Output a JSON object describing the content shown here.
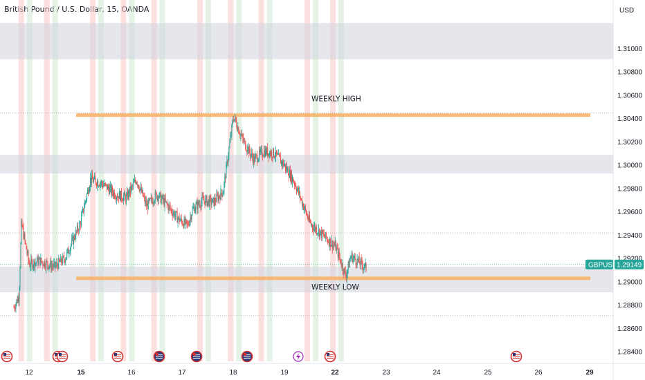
{
  "title": "British Pound / U.S. Dollar, 15, OANDA",
  "currency": "USD",
  "symbol_tag": "GBPUSD",
  "current_price_label": "1.29149",
  "colors": {
    "up": "#26a69a",
    "down": "#ef5350",
    "zone": "#d1d4dc",
    "line": "#f7b267",
    "session_red": "#f7c7c5",
    "session_green": "#cfead3",
    "tag_bg": "#26a69a"
  },
  "annotations": {
    "weekly_high": "WEEKLY HIGH",
    "weekly_low": "WEEKLY LOW"
  },
  "event_icons": [
    "us-flag-icon",
    "us-flag-icon",
    "us-flag-icon",
    "us-flag-icon",
    "uk-flag-icon",
    "uk-flag-icon",
    "uk-flag-icon",
    "lightning-icon",
    "us-flag-icon",
    "us-flag-icon"
  ],
  "chart_data": {
    "type": "candlestick",
    "title": "British Pound / U.S. Dollar, 15, OANDA",
    "ylim": [
      1.283,
      1.314
    ],
    "y_ticks": [
      "1.31000",
      "1.30800",
      "1.30600",
      "1.30400",
      "1.30200",
      "1.30000",
      "1.29800",
      "1.29600",
      "1.29400",
      "1.29200",
      "1.29000",
      "1.28800",
      "1.28600",
      "1.28400"
    ],
    "x_ticks": [
      {
        "label": "12",
        "bold": false
      },
      {
        "label": "15",
        "bold": true
      },
      {
        "label": "16",
        "bold": false
      },
      {
        "label": "17",
        "bold": false
      },
      {
        "label": "18",
        "bold": false
      },
      {
        "label": "19",
        "bold": false
      },
      {
        "label": "22",
        "bold": true
      },
      {
        "label": "23",
        "bold": false
      },
      {
        "label": "24",
        "bold": false
      },
      {
        "label": "25",
        "bold": false
      },
      {
        "label": "26",
        "bold": false
      },
      {
        "label": "29",
        "bold": true
      }
    ],
    "zones": [
      [
        1.3091,
        1.3122
      ],
      [
        1.2993,
        1.3009
      ],
      [
        1.2891,
        1.2913
      ]
    ],
    "weekly_high": 1.3043,
    "weekly_low": 1.2903,
    "current_price": 1.29149,
    "price_path": [
      [
        0,
        1.2878
      ],
      [
        0.1,
        1.2888
      ],
      [
        0.15,
        1.295
      ],
      [
        0.3,
        1.2915
      ],
      [
        0.5,
        1.2918
      ],
      [
        0.8,
        1.2913
      ],
      [
        1.0,
        1.292
      ],
      [
        1.3,
        1.295
      ],
      [
        1.5,
        1.2988
      ],
      [
        1.7,
        1.2985
      ],
      [
        2.0,
        1.2975
      ],
      [
        2.2,
        1.2972
      ],
      [
        2.4,
        1.2988
      ],
      [
        2.6,
        1.2965
      ],
      [
        2.8,
        1.2975
      ],
      [
        3.0,
        1.2966
      ],
      [
        3.2,
        1.2955
      ],
      [
        3.4,
        1.2948
      ],
      [
        3.5,
        1.2962
      ],
      [
        3.7,
        1.297
      ],
      [
        3.9,
        1.2968
      ],
      [
        4.1,
        1.2978
      ],
      [
        4.3,
        1.3042
      ],
      [
        4.5,
        1.302
      ],
      [
        4.7,
        1.3005
      ],
      [
        4.9,
        1.3012
      ],
      [
        5.1,
        1.301
      ],
      [
        5.3,
        1.3
      ],
      [
        5.5,
        1.2985
      ],
      [
        5.8,
        1.295
      ],
      [
        6.0,
        1.2942
      ],
      [
        6.3,
        1.293
      ],
      [
        6.5,
        1.2905
      ],
      [
        6.6,
        1.2922
      ],
      [
        6.9,
        1.2912
      ]
    ]
  }
}
